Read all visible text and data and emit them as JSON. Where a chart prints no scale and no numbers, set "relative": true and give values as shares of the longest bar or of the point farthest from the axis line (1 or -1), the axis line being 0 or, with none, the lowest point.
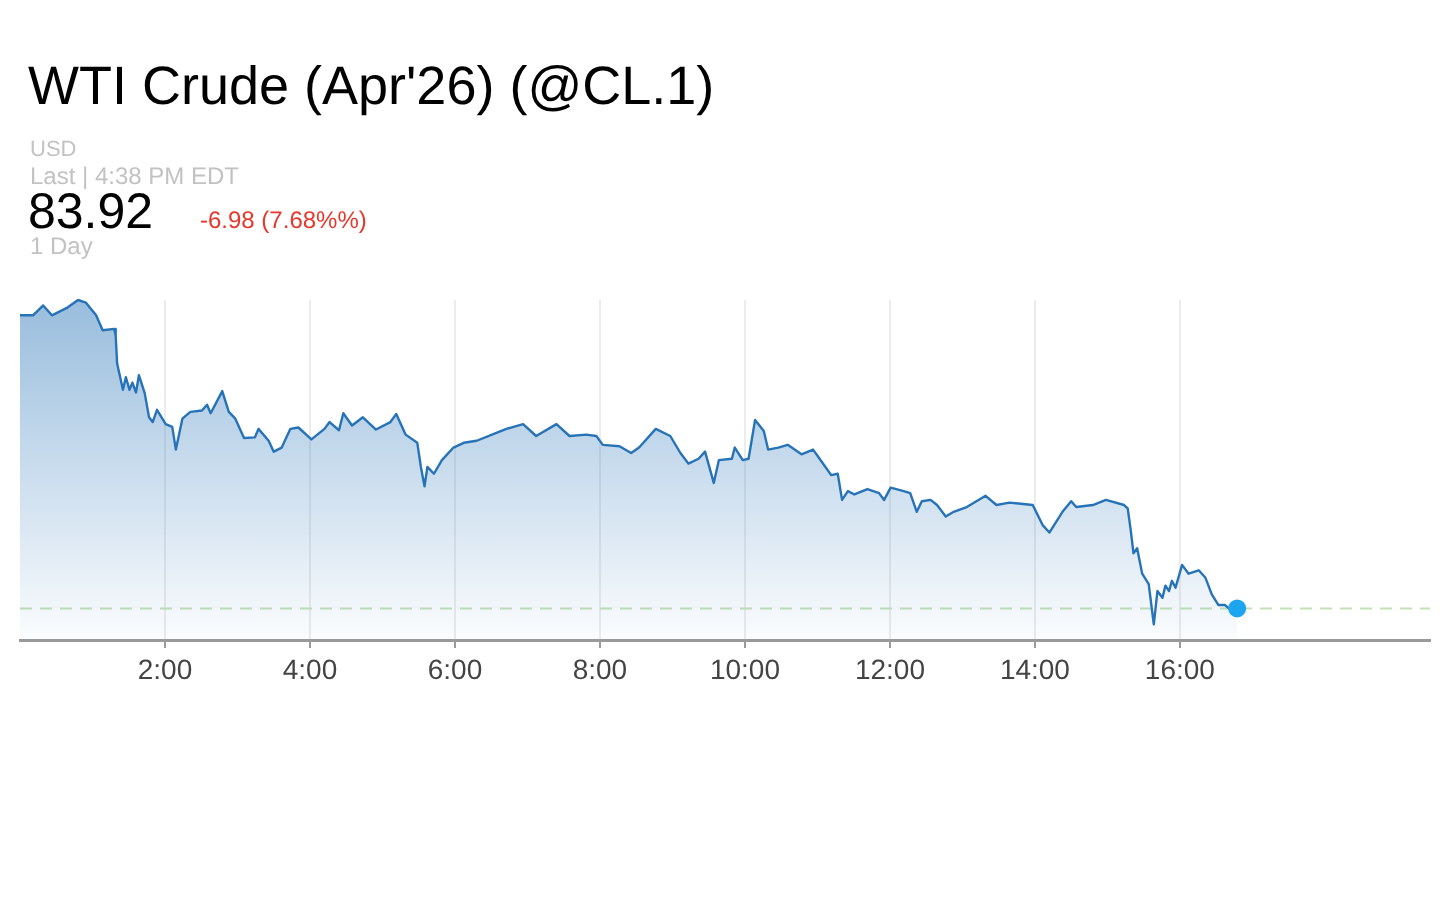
{
  "chart_data": {
    "type": "area",
    "title": "WTI Crude (Apr'26) (@CL.1)",
    "annotations": [
      "USD",
      "Last | 4:38 PM EDT",
      "83.92",
      "-6.98 (7.68%%)",
      "1 Day"
    ],
    "relative": true,
    "x": [
      0.0,
      0.18,
      0.32,
      0.44,
      0.64,
      0.8,
      0.91,
      1.05,
      1.14,
      1.3,
      1.32,
      1.34,
      1.42,
      1.46,
      1.51,
      1.55,
      1.6,
      1.64,
      1.72,
      1.78,
      1.83,
      1.89,
      2.01,
      2.1,
      2.15,
      2.24,
      2.35,
      2.51,
      2.58,
      2.63,
      2.79,
      2.88,
      2.97,
      3.09,
      3.24,
      3.29,
      3.43,
      3.5,
      3.61,
      3.73,
      3.84,
      4.02,
      4.2,
      4.27,
      4.4,
      4.46,
      4.58,
      4.73,
      4.91,
      5.11,
      5.19,
      5.32,
      5.48,
      5.53,
      5.58,
      5.62,
      5.71,
      5.82,
      5.98,
      6.12,
      6.3,
      6.58,
      6.71,
      6.94,
      7.12,
      7.4,
      7.58,
      7.81,
      7.95,
      8.04,
      8.27,
      8.43,
      8.54,
      8.77,
      8.97,
      9.11,
      9.22,
      9.36,
      9.45,
      9.57,
      9.64,
      9.82,
      9.86,
      9.97,
      10.05,
      10.14,
      10.26,
      10.32,
      10.46,
      10.59,
      10.78,
      10.94,
      11.03,
      11.19,
      11.28,
      11.34,
      11.42,
      11.51,
      11.69,
      11.85,
      11.92,
      12.01,
      12.19,
      12.28,
      12.37,
      12.44,
      12.56,
      12.65,
      12.77,
      12.88,
      13.06,
      13.32,
      13.47,
      13.65,
      13.97,
      14.11,
      14.2,
      14.38,
      14.5,
      14.57,
      14.8,
      14.98,
      15.23,
      15.28,
      15.32,
      15.36,
      15.41,
      15.48,
      15.57,
      15.64,
      15.69,
      15.76,
      15.8,
      15.85,
      15.89,
      15.94,
      16.03,
      16.12,
      16.26,
      16.35,
      16.44,
      16.53,
      16.62,
      16.71,
      16.76,
      16.79
    ],
    "series": [
      {
        "color": "#2673b8",
        "values": [
          0.955,
          0.955,
          0.984,
          0.955,
          0.976,
          1.0,
          0.992,
          0.955,
          0.911,
          0.915,
          0.895,
          0.813,
          0.736,
          0.773,
          0.736,
          0.757,
          0.728,
          0.779,
          0.726,
          0.655,
          0.641,
          0.677,
          0.635,
          0.627,
          0.56,
          0.651,
          0.671,
          0.675,
          0.692,
          0.667,
          0.732,
          0.671,
          0.651,
          0.594,
          0.596,
          0.621,
          0.586,
          0.554,
          0.566,
          0.621,
          0.625,
          0.59,
          0.621,
          0.641,
          0.617,
          0.667,
          0.631,
          0.655,
          0.619,
          0.641,
          0.665,
          0.604,
          0.58,
          0.509,
          0.452,
          0.509,
          0.489,
          0.529,
          0.566,
          0.58,
          0.586,
          0.61,
          0.621,
          0.635,
          0.6,
          0.635,
          0.6,
          0.604,
          0.6,
          0.574,
          0.57,
          0.55,
          0.566,
          0.621,
          0.6,
          0.55,
          0.519,
          0.533,
          0.554,
          0.462,
          0.529,
          0.533,
          0.566,
          0.529,
          0.533,
          0.647,
          0.615,
          0.56,
          0.566,
          0.574,
          0.546,
          0.56,
          0.533,
          0.485,
          0.489,
          0.412,
          0.438,
          0.428,
          0.444,
          0.432,
          0.412,
          0.448,
          0.438,
          0.432,
          0.377,
          0.408,
          0.412,
          0.397,
          0.363,
          0.377,
          0.391,
          0.424,
          0.397,
          0.404,
          0.397,
          0.337,
          0.316,
          0.377,
          0.408,
          0.391,
          0.397,
          0.412,
          0.397,
          0.387,
          0.326,
          0.255,
          0.27,
          0.195,
          0.164,
          0.046,
          0.144,
          0.124,
          0.16,
          0.144,
          0.174,
          0.154,
          0.221,
          0.195,
          0.205,
          0.184,
          0.134,
          0.103,
          0.103,
          0.087,
          0.073,
          0.093
        ]
      },
      {
        "type": "scatter",
        "color": "#1ea5f0",
        "marker": "circle",
        "x": [
          16.79
        ],
        "values": [
          0.093
        ]
      }
    ],
    "xlim": [
      0,
      19.45
    ],
    "xticks": [
      {
        "value": 2,
        "label": "2:00"
      },
      {
        "value": 4,
        "label": "4:00"
      },
      {
        "value": 6,
        "label": "6:00"
      },
      {
        "value": 8,
        "label": "8:00"
      },
      {
        "value": 10,
        "label": "10:00"
      },
      {
        "value": 12,
        "label": "12:00"
      },
      {
        "value": 14,
        "label": "14:00"
      },
      {
        "value": 16,
        "label": "16:00"
      }
    ],
    "grid": "x",
    "ref_lines": [
      {
        "axis": "y",
        "value": 0.093,
        "color": "#c3e2b5",
        "line_style": "dashed"
      }
    ]
  }
}
